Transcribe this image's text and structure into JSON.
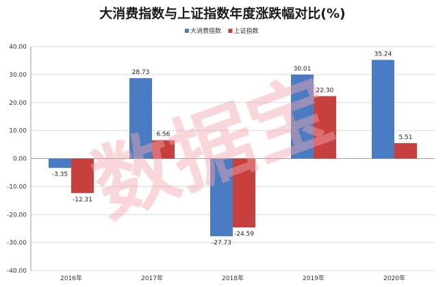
{
  "chart_data": {
    "type": "bar",
    "title": "大消费指数与上证指数年度涨跌幅对比(%)",
    "categories": [
      "2016年",
      "2017年",
      "2018年",
      "2019年",
      "2020年"
    ],
    "series": [
      {
        "name": "大消费指数",
        "values": [
          -3.35,
          28.73,
          -27.73,
          30.01,
          35.24
        ],
        "labels": [
          "-3.35",
          "28.73",
          "-27.73",
          "30.01",
          "35.24"
        ],
        "color": "#4a7cc3"
      },
      {
        "name": "上证指数",
        "values": [
          -12.31,
          6.56,
          -24.59,
          22.3,
          5.51
        ],
        "labels": [
          "-12.31",
          "6.56",
          "-24.59",
          "22.30",
          "5.51"
        ],
        "color": "#c8403e"
      }
    ],
    "ylim": [
      -40,
      40
    ],
    "yticks": [
      "40.00",
      "30.00",
      "20.00",
      "10.00",
      "0.00",
      "-10.00",
      "-20.00",
      "-30.00",
      "-40.00"
    ],
    "ytick_values": [
      40,
      30,
      20,
      10,
      0,
      -10,
      -20,
      -30,
      -40
    ],
    "grid": true,
    "legend_position": "top-center"
  },
  "watermark": {
    "text": "数据宝"
  }
}
